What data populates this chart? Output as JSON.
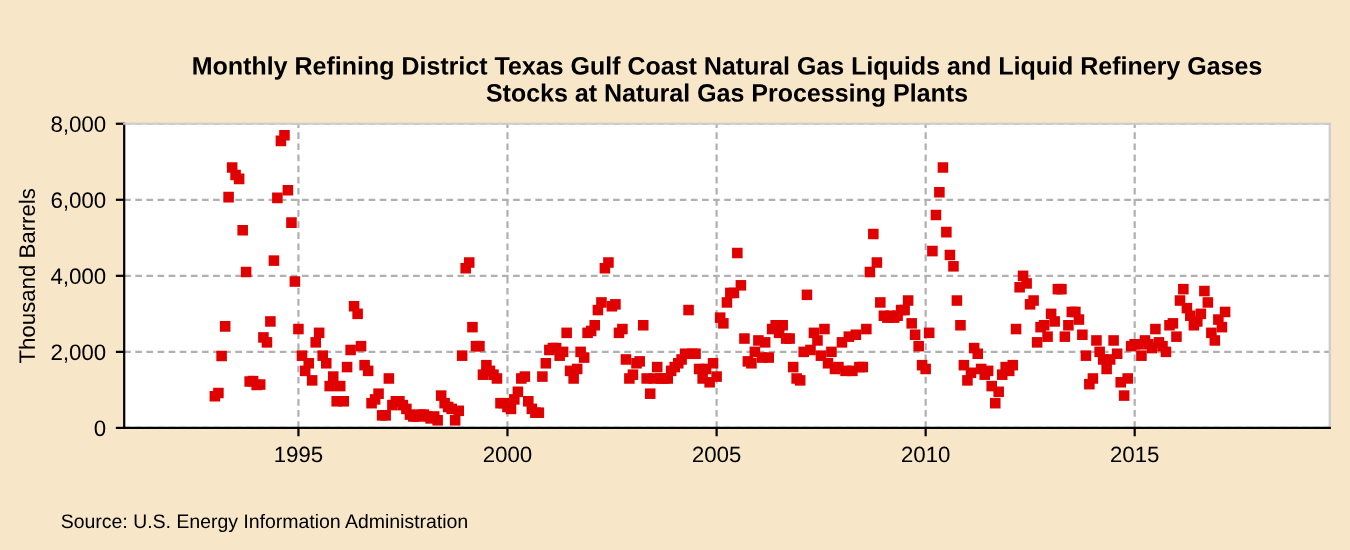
{
  "chart_data": {
    "type": "scatter",
    "title": "Monthly Refining District Texas Gulf Coast Natural Gas Liquids and Liquid Refinery Gases\nStocks at Natural Gas Processing Plants",
    "ylabel": "Thousand Barrels",
    "annotations": [
      "Source: U.S. Energy Information Administration"
    ],
    "series": [
      {
        "color": "#e00000",
        "x": [
          "1993-01",
          "1993-02",
          "1993-03",
          "1993-04",
          "1993-05",
          "1993-06",
          "1993-07",
          "1993-08",
          "1993-09",
          "1993-10",
          "1993-11",
          "1993-12",
          "1994-01",
          "1994-02",
          "1994-03",
          "1994-04",
          "1994-05",
          "1994-06",
          "1994-07",
          "1994-08",
          "1994-09",
          "1994-10",
          "1994-11",
          "1994-12",
          "1995-01",
          "1995-02",
          "1995-03",
          "1995-04",
          "1995-05",
          "1995-06",
          "1995-07",
          "1995-08",
          "1995-09",
          "1995-10",
          "1995-11",
          "1995-12",
          "1996-01",
          "1996-02",
          "1996-03",
          "1996-04",
          "1996-05",
          "1996-06",
          "1996-07",
          "1996-08",
          "1996-09",
          "1996-10",
          "1996-11",
          "1996-12",
          "1997-01",
          "1997-02",
          "1997-03",
          "1997-04",
          "1997-05",
          "1997-06",
          "1997-07",
          "1997-08",
          "1997-09",
          "1997-10",
          "1997-11",
          "1997-12",
          "1998-01",
          "1998-02",
          "1998-03",
          "1998-04",
          "1998-05",
          "1998-06",
          "1998-07",
          "1998-08",
          "1998-09",
          "1998-10",
          "1998-11",
          "1998-12",
          "1999-01",
          "1999-02",
          "1999-03",
          "1999-04",
          "1999-05",
          "1999-06",
          "1999-07",
          "1999-08",
          "1999-09",
          "1999-10",
          "1999-11",
          "1999-12",
          "2000-01",
          "2000-02",
          "2000-03",
          "2000-04",
          "2000-05",
          "2000-06",
          "2000-07",
          "2000-08",
          "2000-09",
          "2000-10",
          "2000-11",
          "2000-12",
          "2001-01",
          "2001-02",
          "2001-03",
          "2001-04",
          "2001-05",
          "2001-06",
          "2001-07",
          "2001-08",
          "2001-09",
          "2001-10",
          "2001-11",
          "2001-12",
          "2002-01",
          "2002-02",
          "2002-03",
          "2002-04",
          "2002-05",
          "2002-06",
          "2002-07",
          "2002-08",
          "2002-09",
          "2002-10",
          "2002-11",
          "2002-12",
          "2003-01",
          "2003-02",
          "2003-03",
          "2003-04",
          "2003-05",
          "2003-06",
          "2003-07",
          "2003-08",
          "2003-09",
          "2003-10",
          "2003-11",
          "2003-12",
          "2004-01",
          "2004-02",
          "2004-03",
          "2004-04",
          "2004-05",
          "2004-06",
          "2004-07",
          "2004-08",
          "2004-09",
          "2004-10",
          "2004-11",
          "2004-12",
          "2005-01",
          "2005-02",
          "2005-03",
          "2005-04",
          "2005-05",
          "2005-06",
          "2005-07",
          "2005-08",
          "2005-09",
          "2005-10",
          "2005-11",
          "2005-12",
          "2006-01",
          "2006-02",
          "2006-03",
          "2006-04",
          "2006-05",
          "2006-06",
          "2006-07",
          "2006-08",
          "2006-09",
          "2006-10",
          "2006-11",
          "2006-12",
          "2007-01",
          "2007-02",
          "2007-03",
          "2007-04",
          "2007-05",
          "2007-06",
          "2007-07",
          "2007-08",
          "2007-09",
          "2007-10",
          "2007-11",
          "2007-12",
          "2008-01",
          "2008-02",
          "2008-03",
          "2008-04",
          "2008-05",
          "2008-06",
          "2008-07",
          "2008-08",
          "2008-09",
          "2008-10",
          "2008-11",
          "2008-12",
          "2009-01",
          "2009-02",
          "2009-03",
          "2009-04",
          "2009-05",
          "2009-06",
          "2009-07",
          "2009-08",
          "2009-09",
          "2009-10",
          "2009-11",
          "2009-12",
          "2010-01",
          "2010-02",
          "2010-03",
          "2010-04",
          "2010-05",
          "2010-06",
          "2010-07",
          "2010-08",
          "2010-09",
          "2010-10",
          "2010-11",
          "2010-12",
          "2011-01",
          "2011-02",
          "2011-03",
          "2011-04",
          "2011-05",
          "2011-06",
          "2011-07",
          "2011-08",
          "2011-09",
          "2011-10",
          "2011-11",
          "2011-12",
          "2012-01",
          "2012-02",
          "2012-03",
          "2012-04",
          "2012-05",
          "2012-06",
          "2012-07",
          "2012-08",
          "2012-09",
          "2012-10",
          "2012-11",
          "2012-12",
          "2013-01",
          "2013-02",
          "2013-03",
          "2013-04",
          "2013-05",
          "2013-06",
          "2013-07",
          "2013-08",
          "2013-09",
          "2013-10",
          "2013-11",
          "2013-12",
          "2014-01",
          "2014-02",
          "2014-03",
          "2014-04",
          "2014-05",
          "2014-06",
          "2014-07",
          "2014-08",
          "2014-09",
          "2014-10",
          "2014-11",
          "2014-12",
          "2015-01",
          "2015-02",
          "2015-03",
          "2015-04",
          "2015-05",
          "2015-06",
          "2015-07",
          "2015-08",
          "2015-09",
          "2015-10",
          "2015-11",
          "2015-12",
          "2016-01",
          "2016-02",
          "2016-03",
          "2016-04",
          "2016-05",
          "2016-06",
          "2016-07",
          "2016-08",
          "2016-09",
          "2016-10",
          "2016-11",
          "2016-12",
          "2017-01",
          "2017-02",
          "2017-03"
        ],
        "values": [
          830,
          920,
          1890,
          2670,
          6070,
          6850,
          6650,
          6550,
          5200,
          4100,
          1220,
          1230,
          1130,
          1140,
          2380,
          2250,
          2800,
          4400,
          6050,
          7550,
          7700,
          6250,
          5400,
          3850,
          2600,
          1900,
          1500,
          1700,
          1250,
          2250,
          2500,
          1900,
          1700,
          1100,
          1350,
          700,
          1100,
          700,
          1600,
          2050,
          3200,
          3000,
          2150,
          1650,
          1500,
          650,
          750,
          900,
          330,
          330,
          1300,
          600,
          700,
          700,
          600,
          500,
          350,
          300,
          300,
          350,
          350,
          300,
          250,
          300,
          200,
          850,
          650,
          550,
          500,
          200,
          450,
          1900,
          4200,
          4350,
          2650,
          2150,
          2150,
          1400,
          1650,
          1500,
          1400,
          1300,
          650,
          650,
          550,
          500,
          750,
          950,
          1300,
          1350,
          700,
          500,
          400,
          400,
          1350,
          1700,
          2050,
          2100,
          2100,
          1900,
          2000,
          2500,
          1500,
          1300,
          1550,
          2000,
          1850,
          2500,
          2550,
          2700,
          3100,
          3300,
          4200,
          4350,
          3200,
          3250,
          2500,
          2600,
          1800,
          1300,
          1400,
          1700,
          1750,
          2700,
          1300,
          900,
          1300,
          1600,
          1300,
          1300,
          1300,
          1500,
          1600,
          1700,
          1800,
          1950,
          3100,
          1950,
          1950,
          1550,
          1300,
          1550,
          1200,
          1700,
          1350,
          2900,
          2750,
          3300,
          3550,
          3550,
          4600,
          3750,
          2350,
          1750,
          1700,
          2000,
          2300,
          1850,
          2250,
          1850,
          2600,
          2700,
          2500,
          2700,
          2350,
          2350,
          1600,
          1300,
          1250,
          2000,
          3500,
          2050,
          2500,
          2300,
          1900,
          2600,
          1700,
          2000,
          1550,
          1600,
          2250,
          1500,
          2400,
          1500,
          2450,
          1600,
          1600,
          2600,
          4100,
          5100,
          4350,
          3300,
          2950,
          2900,
          2950,
          2900,
          2950,
          3100,
          3100,
          3350,
          2750,
          2450,
          2150,
          1650,
          1550,
          2500,
          4650,
          5600,
          6200,
          6850,
          5150,
          4550,
          4250,
          3350,
          2700,
          1650,
          1250,
          1450,
          2100,
          1950,
          1550,
          1400,
          1500,
          1100,
          650,
          950,
          1400,
          1600,
          1500,
          1650,
          2600,
          3700,
          4000,
          3800,
          3250,
          3350,
          2250,
          2650,
          2700,
          2400,
          3000,
          2800,
          3650,
          3650,
          2400,
          2700,
          3050,
          3050,
          2850,
          2450,
          1900,
          1150,
          1300,
          2300,
          2000,
          1800,
          1550,
          1800,
          2300,
          1950,
          1200,
          850,
          1300,
          2150,
          2200,
          2200,
          1900,
          2300,
          2200,
          2100,
          2600,
          2250,
          2150,
          2000,
          2700,
          2750,
          2400,
          3350,
          3650,
          3150,
          2950,
          2700,
          2800,
          3000,
          3600,
          3300,
          2500,
          2300,
          2850,
          2650,
          3050
        ]
      }
    ],
    "xlim": [
      "1990-11",
      "2019-09"
    ],
    "xticks": [
      {
        "value": "1995",
        "label": "1995"
      },
      {
        "value": "2000",
        "label": "2000"
      },
      {
        "value": "2005",
        "label": "2005"
      },
      {
        "value": "2010",
        "label": "2010"
      },
      {
        "value": "2015",
        "label": "2015"
      }
    ],
    "ylim": [
      0,
      8000
    ],
    "yticks": [
      {
        "value": 0,
        "label": "0"
      },
      {
        "value": 2000,
        "label": "2,000"
      },
      {
        "value": 4000,
        "label": "4,000"
      },
      {
        "value": 6000,
        "label": "6,000"
      },
      {
        "value": 8000,
        "label": "8,000"
      }
    ],
    "grid": true,
    "marker": "square"
  }
}
